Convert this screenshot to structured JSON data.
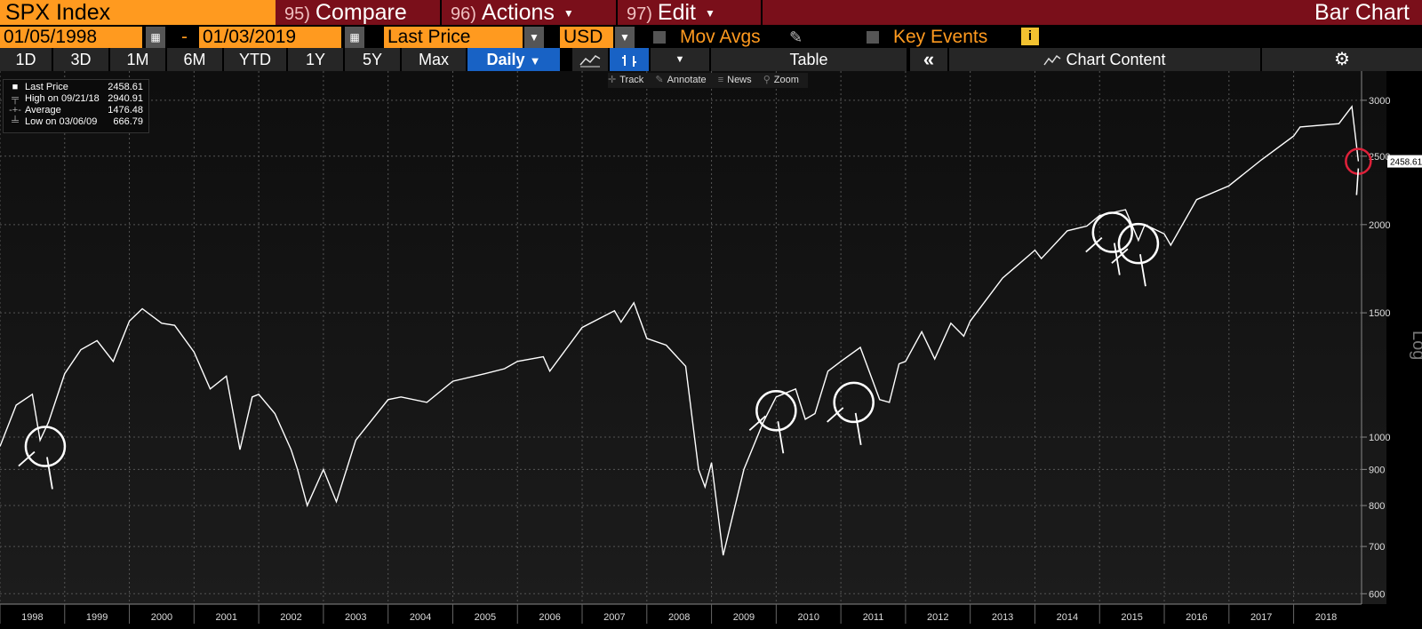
{
  "header": {
    "ticker": "SPX Index",
    "compare_num": "95)",
    "compare_label": "Compare",
    "actions_num": "96)",
    "actions_label": "Actions",
    "edit_num": "97)",
    "edit_label": "Edit",
    "chart_title": "Bar Chart"
  },
  "controls": {
    "start_date": "01/05/1998",
    "dash": "-",
    "end_date": "01/03/2019",
    "field": "Last Price",
    "currency": "USD",
    "mov_avgs": "Mov Avgs",
    "key_events": "Key Events",
    "info_icon": "i"
  },
  "toolbar": {
    "ranges": [
      "1D",
      "3D",
      "1M",
      "6M",
      "YTD",
      "1Y",
      "5Y",
      "Max"
    ],
    "period": "Daily",
    "table": "Table",
    "collapse": "«",
    "chart_content": "Chart Content",
    "settings_icon": "gear-icon"
  },
  "chart_tools": [
    "Track",
    "Annotate",
    "News",
    "Zoom"
  ],
  "legend": [
    {
      "label": "Last Price",
      "value": "2458.61"
    },
    {
      "label": "High on 09/21/18",
      "value": "2940.91"
    },
    {
      "label": "Average",
      "value": "1476.48"
    },
    {
      "label": "Low on 03/06/09",
      "value": "666.79"
    }
  ],
  "colors": {
    "accent": "#ff9a1f",
    "menu": "#7a0f1a",
    "active": "#1862c5",
    "line": "#ffffff",
    "highlight": "#e0213a"
  },
  "chart_data": {
    "type": "line",
    "scale": "log",
    "ylabel": "Log",
    "ylim": [
      580,
      3300
    ],
    "yticks": [
      600,
      700,
      800,
      900,
      1000,
      1500,
      2000,
      2500,
      3000
    ],
    "xlim": [
      1998.0,
      2019.05
    ],
    "years": [
      "1998",
      "1999",
      "2000",
      "2001",
      "2002",
      "2003",
      "2004",
      "2005",
      "2006",
      "2007",
      "2008",
      "2009",
      "2010",
      "2011",
      "2012",
      "2013",
      "2014",
      "2015",
      "2016",
      "2017",
      "2018"
    ],
    "last_price_label": "2458.61",
    "grid": true,
    "x": [
      1998.0,
      1998.25,
      1998.5,
      1998.62,
      1998.75,
      1999.0,
      1999.25,
      1999.5,
      1999.75,
      2000.0,
      2000.2,
      2000.5,
      2000.7,
      2001.0,
      2001.25,
      2001.5,
      2001.71,
      2001.9,
      2002.0,
      2002.25,
      2002.5,
      2002.6,
      2002.75,
      2003.0,
      2003.2,
      2003.5,
      2004.0,
      2004.2,
      2004.6,
      2005.0,
      2005.5,
      2005.8,
      2006.0,
      2006.4,
      2006.5,
      2007.0,
      2007.5,
      2007.6,
      2007.8,
      2008.0,
      2008.3,
      2008.6,
      2008.8,
      2008.9,
      2009.0,
      2009.18,
      2009.5,
      2009.8,
      2010.0,
      2010.3,
      2010.45,
      2010.6,
      2010.8,
      2011.0,
      2011.3,
      2011.6,
      2011.75,
      2011.9,
      2012.0,
      2012.25,
      2012.45,
      2012.7,
      2012.9,
      2013.0,
      2013.5,
      2014.0,
      2014.1,
      2014.5,
      2014.8,
      2015.0,
      2015.4,
      2015.6,
      2015.7,
      2016.0,
      2016.1,
      2016.5,
      2017.0,
      2017.5,
      2018.0,
      2018.1,
      2018.7,
      2018.9,
      2019.0
    ],
    "y": [
      970,
      1110,
      1150,
      990,
      1050,
      1230,
      1330,
      1370,
      1280,
      1460,
      1520,
      1450,
      1440,
      1320,
      1170,
      1220,
      960,
      1140,
      1150,
      1080,
      960,
      900,
      800,
      900,
      810,
      990,
      1130,
      1140,
      1120,
      1200,
      1230,
      1250,
      1280,
      1300,
      1240,
      1430,
      1510,
      1455,
      1550,
      1380,
      1350,
      1260,
      900,
      850,
      920,
      680,
      900,
      1050,
      1140,
      1170,
      1060,
      1080,
      1240,
      1280,
      1340,
      1130,
      1120,
      1270,
      1280,
      1410,
      1290,
      1450,
      1390,
      1460,
      1680,
      1840,
      1790,
      1960,
      1990,
      2060,
      2100,
      1900,
      2000,
      1940,
      1870,
      2170,
      2270,
      2470,
      2670,
      2750,
      2780,
      2940,
      2458.61
    ]
  }
}
